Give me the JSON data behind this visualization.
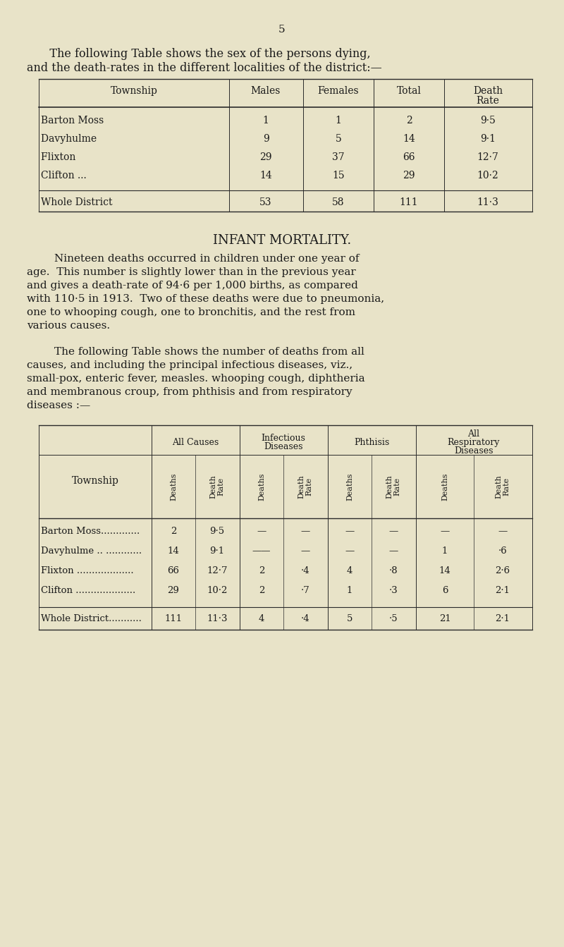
{
  "bg_color": "#e8e3c8",
  "text_color": "#1a1a1a",
  "page_number": "5",
  "intro_text_1": "   The following Table shows the sex of the persons dying,",
  "intro_text_2": "and the death-rates in the different localities of the district:—",
  "table1_header": [
    "Township",
    "Males",
    "Females",
    "Total",
    "Death\nRate"
  ],
  "table1_rows": [
    [
      "Barton Moss                          ",
      "1",
      "1",
      "2",
      "9·5"
    ],
    [
      "Davyhulme                          ",
      "9",
      "5",
      "14",
      "9·1"
    ],
    [
      "Flixton                               ",
      "29",
      "37",
      "66",
      "12·7"
    ],
    [
      "Clifton ...                              ",
      "14",
      "15",
      "29",
      "10·2"
    ]
  ],
  "table1_total": [
    "Whole District                ",
    "53",
    "58",
    "111",
    "11·3"
  ],
  "infant_title": "INFANT MORTALITY.",
  "infant_lines": [
    "        Nineteen deaths occurred in children under one year of",
    "age.  This number is slightly lower than in the previous year",
    "and gives a death-rate of 94·6 per 1,000 births, as compared",
    "with 110·5 in 1913.  Two of these deaths were due to pneumonia,",
    "one to whooping cough, one to bronchitis, and the rest from",
    "various causes."
  ],
  "intro2_lines": [
    "        The following Table shows the number of deaths from all",
    "causes, and including the principal infectious diseases, viz.,",
    "small-pox, enteric fever, measles. whooping cough, diphtheria",
    "and membranous croup, from phthisis and from respiratory",
    "diseases :—"
  ],
  "table2_col_groups": [
    "All Causes",
    "Infectious\nDiseases",
    "Phthisis",
    "All\nRespiratory\nDiseases"
  ],
  "table2_sub_headers": [
    "Deaths",
    "Death\nRate",
    "Deaths",
    "Death\nRate",
    "Deaths",
    "Death\nRate",
    "Deaths",
    "Death\nRate"
  ],
  "table2_rows": [
    [
      "Barton Moss.............",
      "2",
      "9·5",
      "—",
      "—",
      "—",
      "—",
      "—",
      "—"
    ],
    [
      "Davyhulme .. ............",
      "14",
      "9·1",
      "——",
      "—",
      "—",
      "—",
      "1",
      "·6"
    ],
    [
      "Flixton ...................",
      "66",
      "12·7",
      "2",
      "·4",
      "4",
      "·8",
      "14",
      "2·6"
    ],
    [
      "Clifton ....................",
      "29",
      "10·2",
      "2",
      "·7",
      "1",
      "·3",
      "6",
      "2·1"
    ]
  ],
  "table2_total": [
    "Whole District...........",
    "111",
    "11·3",
    "4",
    "·4",
    "5",
    "·5",
    "21",
    "2·1"
  ]
}
